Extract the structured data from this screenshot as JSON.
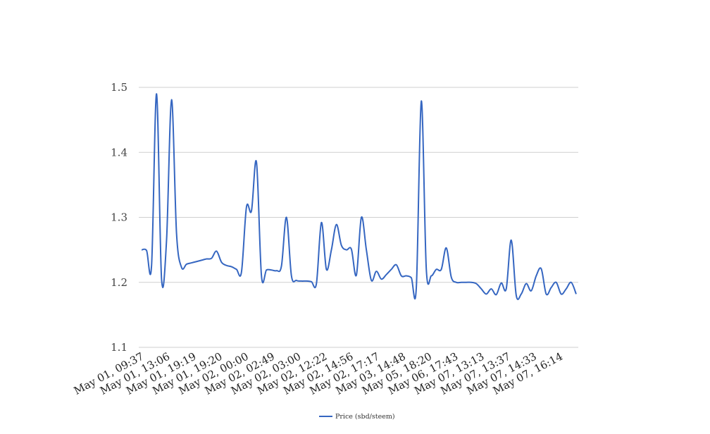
{
  "chart_data": {
    "type": "line",
    "title": "",
    "xlabel": "",
    "ylabel": "",
    "ylim": [
      1.1,
      1.5
    ],
    "yticks": [
      "1.1",
      "1.2",
      "1.3",
      "1.4",
      "1.5"
    ],
    "grid": true,
    "legend_position": "bottom-center",
    "x_tick_labels": [
      "May 01, 09:37",
      "May 01, 13:06",
      "May 01, 19:19",
      "May 01, 19:20",
      "May 02, 00:00",
      "May 02, 02:49",
      "May 02, 03:00",
      "May 02, 12:22",
      "May 02, 14:56",
      "May 02, 17:17",
      "May 03, 14:48",
      "May 05, 18:20",
      "May 06, 17:43",
      "May 07, 13:13",
      "May 07, 13:37",
      "May 07, 14:33",
      "May 07, 16:14"
    ],
    "series": [
      {
        "name": "Price (sbd/steem)",
        "color": "#3566c1",
        "values": [
          1.25,
          1.249,
          1.226,
          1.49,
          1.205,
          1.265,
          1.481,
          1.275,
          1.223,
          1.228,
          1.23,
          1.232,
          1.234,
          1.236,
          1.237,
          1.248,
          1.231,
          1.226,
          1.224,
          1.22,
          1.216,
          1.316,
          1.31,
          1.385,
          1.21,
          1.219,
          1.219,
          1.218,
          1.225,
          1.3,
          1.21,
          1.203,
          1.202,
          1.202,
          1.201,
          1.198,
          1.292,
          1.22,
          1.25,
          1.289,
          1.257,
          1.25,
          1.251,
          1.211,
          1.3,
          1.25,
          1.203,
          1.217,
          1.205,
          1.212,
          1.22,
          1.227,
          1.21,
          1.21,
          1.207,
          1.192,
          1.479,
          1.22,
          1.21,
          1.22,
          1.22,
          1.253,
          1.208,
          1.2,
          1.2,
          1.2,
          1.2,
          1.198,
          1.19,
          1.182,
          1.19,
          1.181,
          1.199,
          1.19,
          1.265,
          1.18,
          1.182,
          1.198,
          1.187,
          1.21,
          1.221,
          1.182,
          1.192,
          1.2,
          1.182,
          1.19,
          1.2,
          1.182
        ]
      }
    ]
  }
}
